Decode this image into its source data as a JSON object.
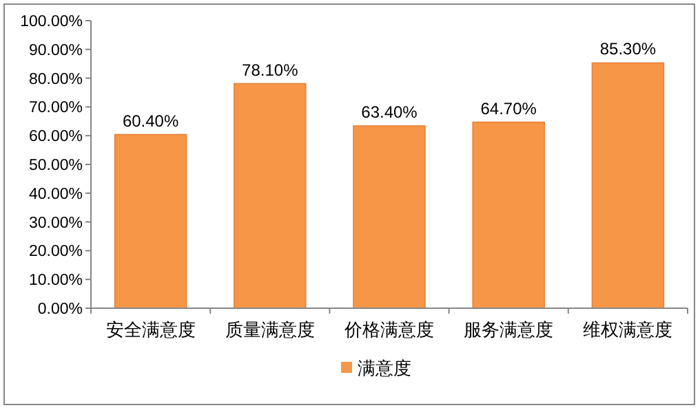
{
  "chart_data": {
    "type": "bar",
    "categories": [
      "安全满意度",
      "质量满意度",
      "价格满意度",
      "服务满意度",
      "维权满意度"
    ],
    "series": [
      {
        "name": "满意度",
        "color": "#f79646",
        "values": [
          60.4,
          78.1,
          63.4,
          64.7,
          85.3
        ],
        "value_labels": [
          "60.40%",
          "78.10%",
          "63.40%",
          "64.70%",
          "85.30%"
        ]
      }
    ],
    "ylim": [
      0,
      100
    ],
    "yticks": [
      {
        "value": 0,
        "label": "0.00%"
      },
      {
        "value": 10,
        "label": "10.00%"
      },
      {
        "value": 20,
        "label": "20.00%"
      },
      {
        "value": 30,
        "label": "30.00%"
      },
      {
        "value": 40,
        "label": "40.00%"
      },
      {
        "value": 50,
        "label": "50.00%"
      },
      {
        "value": 60,
        "label": "60.00%"
      },
      {
        "value": 70,
        "label": "70.00%"
      },
      {
        "value": 80,
        "label": "80.00%"
      },
      {
        "value": 90,
        "label": "90.00%"
      },
      {
        "value": 100,
        "label": "100.00%"
      }
    ],
    "legend": "bottom",
    "grid": false
  }
}
